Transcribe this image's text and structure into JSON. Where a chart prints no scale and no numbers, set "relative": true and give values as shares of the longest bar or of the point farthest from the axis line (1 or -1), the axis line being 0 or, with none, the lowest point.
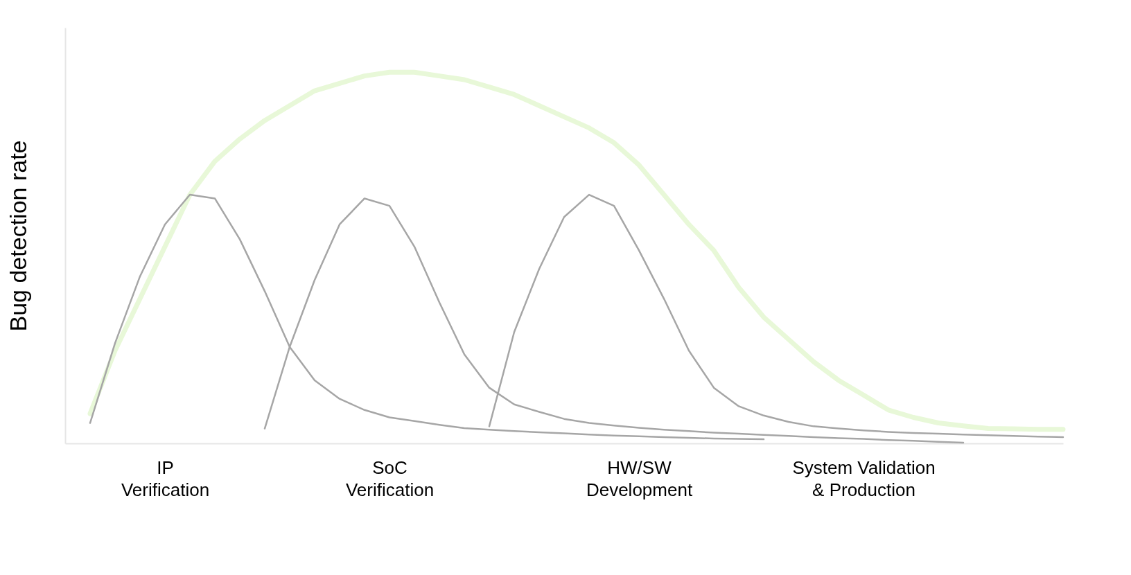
{
  "chart_data": {
    "type": "line",
    "ylabel": "Bug detection rate",
    "relative": true,
    "grid": false,
    "legend": false,
    "marker": "none",
    "line_style": "solid",
    "categories": [
      null,
      null,
      null,
      null,
      "IP\nVerification",
      null,
      null,
      null,
      null,
      null,
      null,
      null,
      null,
      "SoC\nVerification",
      null,
      null,
      null,
      null,
      null,
      null,
      null,
      null,
      null,
      "HW/SW\nDevelopment",
      null,
      null,
      null,
      null,
      null,
      null,
      null,
      null,
      "System Validation\n& Production",
      null,
      null,
      null,
      null,
      null,
      null,
      null,
      null
    ],
    "series": [
      {
        "color": "#e8f8d8",
        "values": [
          null,
          0.08,
          0.25,
          0.39,
          0.53,
          0.67,
          0.76,
          0.82,
          0.87,
          0.91,
          0.95,
          0.97,
          0.99,
          1.0,
          1.0,
          0.99,
          0.98,
          0.96,
          0.94,
          0.91,
          0.88,
          0.85,
          0.81,
          0.75,
          0.67,
          0.59,
          0.52,
          0.42,
          0.34,
          0.28,
          0.22,
          0.17,
          0.13,
          0.09,
          0.07,
          0.055,
          0.047,
          0.04,
          0.039,
          0.038,
          0.038
        ]
      },
      {
        "color": "#a6a6a6",
        "values": [
          null,
          0.055,
          0.27,
          0.45,
          0.59,
          0.67,
          0.66,
          0.55,
          0.41,
          0.26,
          0.17,
          0.12,
          0.09,
          0.07,
          0.06,
          0.05,
          0.041,
          0.037,
          0.033,
          0.03,
          0.027,
          0.024,
          0.021,
          0.019,
          0.017,
          0.015,
          0.013,
          0.012,
          0.011,
          null,
          null,
          null,
          null,
          null,
          null,
          null,
          null,
          null,
          null,
          null,
          null
        ]
      },
      {
        "color": "#a6a6a6",
        "values": [
          null,
          null,
          null,
          null,
          null,
          null,
          null,
          null,
          0.04,
          0.26,
          0.44,
          0.59,
          0.66,
          0.64,
          0.53,
          0.38,
          0.24,
          0.15,
          0.105,
          0.085,
          0.066,
          0.055,
          0.048,
          0.042,
          0.037,
          0.033,
          0.029,
          0.026,
          0.023,
          0.02,
          0.017,
          0.014,
          0.012,
          0.009,
          0.007,
          0.004,
          0.002,
          null,
          null,
          null,
          null
        ]
      },
      {
        "color": "#a6a6a6",
        "values": [
          null,
          null,
          null,
          null,
          null,
          null,
          null,
          null,
          null,
          null,
          null,
          null,
          null,
          null,
          null,
          null,
          null,
          0.046,
          0.3,
          0.47,
          0.61,
          0.67,
          0.64,
          0.52,
          0.39,
          0.25,
          0.15,
          0.1,
          0.075,
          0.058,
          0.046,
          0.04,
          0.035,
          0.031,
          0.028,
          0.026,
          0.024,
          0.022,
          0.02,
          0.018,
          0.017
        ]
      }
    ]
  }
}
